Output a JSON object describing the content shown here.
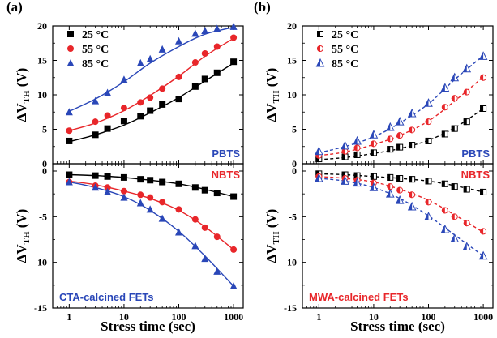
{
  "panels": [
    {
      "label": "(a)"
    },
    {
      "label": "(b)"
    }
  ],
  "chart_data": [
    {
      "type": "scatter",
      "panel": "(a)",
      "subplot": "top",
      "ylabel": "ΔV_TH (V)",
      "xlabel": "",
      "xscale": "log",
      "xlim": [
        0.5,
        1500
      ],
      "ylim": [
        0,
        20
      ],
      "yticks": [
        0,
        5,
        10,
        15,
        20
      ],
      "x_ticks_labels": [],
      "fit_line_style": "solid",
      "annotation": "PBTS",
      "annotation_color": "#2a47b8",
      "legend_position": "top-left",
      "series": [
        {
          "name": "25 °C",
          "color": "#000000",
          "marker": "square",
          "x": [
            1,
            3,
            5,
            10,
            20,
            30,
            50,
            100,
            200,
            300,
            500,
            1000
          ],
          "y": [
            3.3,
            4.2,
            5.1,
            6.2,
            6.9,
            7.7,
            8.6,
            9.4,
            11.2,
            12.3,
            13.2,
            14.8
          ]
        },
        {
          "name": "55 °C",
          "color": "#e8262a",
          "marker": "circle",
          "x": [
            1,
            3,
            5,
            10,
            20,
            30,
            50,
            100,
            200,
            300,
            500,
            1000
          ],
          "y": [
            4.8,
            6.1,
            7.0,
            8.1,
            8.9,
            9.6,
            10.9,
            12.6,
            14.7,
            16.0,
            17.0,
            18.3
          ]
        },
        {
          "name": "85 °C",
          "color": "#2a47b8",
          "marker": "triangle",
          "x": [
            1,
            3,
            5,
            10,
            20,
            30,
            50,
            100,
            200,
            300,
            500,
            1000
          ],
          "y": [
            7.5,
            9.1,
            10.3,
            12.2,
            14.6,
            15.2,
            16.6,
            17.8,
            18.9,
            19.3,
            19.6,
            19.9
          ]
        }
      ],
      "fits": [
        {
          "color": "#000000",
          "x": [
            1,
            3,
            10,
            30,
            100,
            300,
            1000
          ],
          "y": [
            3.2,
            4.2,
            5.6,
            7.4,
            9.6,
            12.0,
            14.6
          ]
        },
        {
          "color": "#e8262a",
          "x": [
            1,
            3,
            10,
            30,
            100,
            300,
            1000
          ],
          "y": [
            4.8,
            5.9,
            7.7,
            9.9,
            12.7,
            15.6,
            18.2
          ]
        },
        {
          "color": "#2a47b8",
          "x": [
            1,
            3,
            10,
            30,
            100,
            300,
            1000
          ],
          "y": [
            7.6,
            9.4,
            11.9,
            14.6,
            17.0,
            18.8,
            19.8
          ]
        }
      ]
    },
    {
      "type": "scatter",
      "panel": "(a)",
      "subplot": "bottom",
      "ylabel": "ΔV_TH (V)",
      "xlabel": "Stress time (sec)",
      "xscale": "log",
      "xlim": [
        0.5,
        1500
      ],
      "ylim": [
        -15,
        0.8
      ],
      "yticks": [
        0,
        -5,
        -10,
        -15
      ],
      "x_ticks_labels": [
        "1",
        "10",
        "100",
        "1000"
      ],
      "fit_line_style": "solid",
      "annotation": "NBTS",
      "annotation_color": "#e8262a",
      "footer": "CTA-calcined FETs",
      "footer_color": "#2a47b8",
      "series": [
        {
          "name": "25 °C",
          "color": "#000000",
          "marker": "square",
          "x": [
            1,
            3,
            5,
            10,
            20,
            30,
            50,
            100,
            200,
            300,
            500,
            1000
          ],
          "y": [
            -0.4,
            -0.5,
            -0.6,
            -0.7,
            -0.9,
            -1.0,
            -1.2,
            -1.4,
            -1.8,
            -2.1,
            -2.4,
            -2.8
          ]
        },
        {
          "name": "55 °C",
          "color": "#e8262a",
          "marker": "circle",
          "x": [
            1,
            3,
            5,
            10,
            20,
            30,
            50,
            100,
            200,
            300,
            500,
            1000
          ],
          "y": [
            -1.2,
            -1.6,
            -1.8,
            -2.2,
            -2.6,
            -2.9,
            -3.4,
            -4.2,
            -5.3,
            -6.2,
            -7.2,
            -8.6
          ]
        },
        {
          "name": "85 °C",
          "color": "#2a47b8",
          "marker": "triangle",
          "x": [
            1,
            3,
            5,
            10,
            20,
            30,
            50,
            100,
            200,
            300,
            500,
            1000
          ],
          "y": [
            -1.2,
            -1.8,
            -2.3,
            -2.9,
            -3.5,
            -4.2,
            -5.2,
            -6.7,
            -8.2,
            -9.6,
            -11.0,
            -12.6
          ]
        }
      ],
      "fits": [
        {
          "color": "#000000",
          "x": [
            1,
            3,
            10,
            30,
            100,
            300,
            1000
          ],
          "y": [
            -0.4,
            -0.5,
            -0.7,
            -1.0,
            -1.4,
            -2.0,
            -2.8
          ]
        },
        {
          "color": "#e8262a",
          "x": [
            1,
            3,
            10,
            30,
            100,
            300,
            1000
          ],
          "y": [
            -1.1,
            -1.5,
            -2.2,
            -3.0,
            -4.3,
            -6.1,
            -8.6
          ]
        },
        {
          "color": "#2a47b8",
          "x": [
            1,
            3,
            10,
            30,
            100,
            300,
            1000
          ],
          "y": [
            -1.2,
            -1.8,
            -2.8,
            -4.3,
            -6.6,
            -9.3,
            -12.6
          ]
        }
      ]
    },
    {
      "type": "scatter",
      "panel": "(b)",
      "subplot": "top",
      "ylabel": "ΔV_TH (V)",
      "xlabel": "",
      "xscale": "log",
      "xlim": [
        0.5,
        1500
      ],
      "ylim": [
        0,
        20
      ],
      "yticks": [
        0,
        5,
        10,
        15,
        20
      ],
      "x_ticks_labels": [],
      "fit_line_style": "dashed",
      "annotation": "PBTS",
      "annotation_color": "#2a47b8",
      "legend_position": "top-left",
      "series": [
        {
          "name": "25 °C",
          "color": "#000000",
          "marker": "half-square",
          "x": [
            1,
            3,
            5,
            10,
            20,
            30,
            50,
            100,
            200,
            300,
            500,
            1000
          ],
          "y": [
            0.7,
            1.0,
            1.3,
            1.6,
            2.1,
            2.4,
            2.7,
            3.3,
            4.3,
            5.1,
            6.1,
            8.0
          ]
        },
        {
          "name": "55 °C",
          "color": "#e8262a",
          "marker": "half-circle",
          "x": [
            1,
            3,
            5,
            10,
            20,
            30,
            50,
            100,
            200,
            300,
            500,
            1000
          ],
          "y": [
            1.2,
            1.8,
            2.3,
            2.9,
            3.6,
            4.1,
            4.9,
            6.1,
            8.2,
            9.5,
            10.4,
            12.5
          ]
        },
        {
          "name": "85 °C",
          "color": "#2a47b8",
          "marker": "half-triangle",
          "x": [
            1,
            3,
            5,
            10,
            20,
            30,
            50,
            100,
            200,
            300,
            500,
            1000
          ],
          "y": [
            1.8,
            2.6,
            3.3,
            4.2,
            5.3,
            6.1,
            7.3,
            8.8,
            11.0,
            12.5,
            13.8,
            15.6
          ]
        }
      ],
      "fits": [
        {
          "color": "#000000",
          "x": [
            1,
            3,
            10,
            30,
            100,
            300,
            1000
          ],
          "y": [
            0.6,
            0.9,
            1.5,
            2.2,
            3.4,
            5.2,
            8.0
          ]
        },
        {
          "color": "#e8262a",
          "x": [
            1,
            3,
            10,
            30,
            100,
            300,
            1000
          ],
          "y": [
            1.2,
            1.7,
            2.8,
            4.1,
            6.2,
            9.1,
            12.6
          ]
        },
        {
          "color": "#2a47b8",
          "x": [
            1,
            3,
            10,
            30,
            100,
            300,
            1000
          ],
          "y": [
            1.6,
            2.5,
            3.9,
            5.9,
            8.7,
            12.2,
            15.7
          ]
        }
      ]
    },
    {
      "type": "scatter",
      "panel": "(b)",
      "subplot": "bottom",
      "ylabel": "ΔV_TH (V)",
      "xlabel": "Stress time (sec)",
      "xscale": "log",
      "xlim": [
        0.5,
        1500
      ],
      "ylim": [
        -15,
        0.8
      ],
      "yticks": [
        0,
        -5,
        -10,
        -15
      ],
      "x_ticks_labels": [
        "1",
        "10",
        "100",
        "1000"
      ],
      "fit_line_style": "dashed",
      "annotation": "NBTS",
      "annotation_color": "#e8262a",
      "footer": "MWA-calcined FETs",
      "footer_color": "#e8262a",
      "series": [
        {
          "name": "25 °C",
          "color": "#000000",
          "marker": "half-square",
          "x": [
            1,
            3,
            5,
            10,
            20,
            30,
            50,
            100,
            200,
            300,
            500,
            1000
          ],
          "y": [
            -0.3,
            -0.4,
            -0.5,
            -0.6,
            -0.7,
            -0.8,
            -0.9,
            -1.1,
            -1.4,
            -1.7,
            -2.0,
            -2.3
          ]
        },
        {
          "name": "55 °C",
          "color": "#e8262a",
          "marker": "half-circle",
          "x": [
            1,
            3,
            5,
            10,
            20,
            30,
            50,
            100,
            200,
            300,
            500,
            1000
          ],
          "y": [
            -0.6,
            -0.8,
            -1.0,
            -1.3,
            -1.7,
            -2.1,
            -2.6,
            -3.4,
            -4.3,
            -5.0,
            -5.7,
            -6.6
          ]
        },
        {
          "name": "85 °C",
          "color": "#2a47b8",
          "marker": "half-triangle",
          "x": [
            1,
            3,
            5,
            10,
            20,
            30,
            50,
            100,
            200,
            300,
            500,
            1000
          ],
          "y": [
            -0.8,
            -1.1,
            -1.3,
            -1.8,
            -2.5,
            -3.2,
            -3.9,
            -5.0,
            -6.4,
            -7.4,
            -8.3,
            -9.3
          ]
        }
      ],
      "fits": [
        {
          "color": "#000000",
          "x": [
            1,
            3,
            10,
            30,
            100,
            300,
            1000
          ],
          "y": [
            -0.3,
            -0.4,
            -0.6,
            -0.8,
            -1.1,
            -1.6,
            -2.3
          ]
        },
        {
          "color": "#e8262a",
          "x": [
            1,
            3,
            10,
            30,
            100,
            300,
            1000
          ],
          "y": [
            -0.6,
            -0.8,
            -1.2,
            -2.0,
            -3.2,
            -4.8,
            -6.7
          ]
        },
        {
          "color": "#2a47b8",
          "x": [
            1,
            3,
            10,
            30,
            100,
            300,
            1000
          ],
          "y": [
            -0.8,
            -1.1,
            -1.8,
            -3.0,
            -4.9,
            -7.0,
            -9.3
          ]
        }
      ]
    }
  ]
}
